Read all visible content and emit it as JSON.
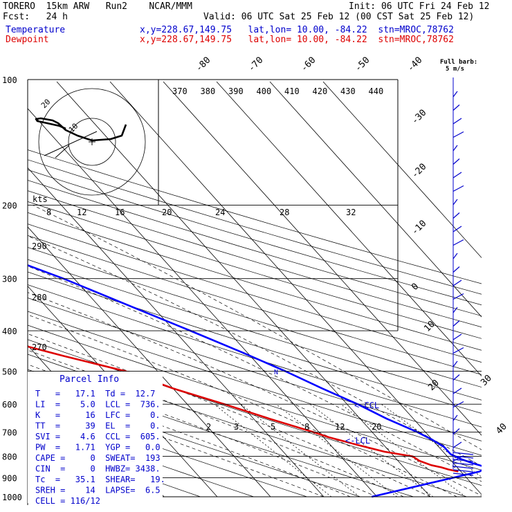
{
  "header": {
    "model": "TORERO  15km ARW   Run2    NCAR/MMM",
    "init": "Init: 06 UTC Fri 24 Feb 12",
    "fcst": "Fcst:   24 h",
    "valid": "Valid: 06 UTC Sat 25 Feb 12 (00 CST Sat 25 Feb 12)",
    "temp_name": "Temperature",
    "temp_loc": "x,y=228.67,149.75   lat,lon= 10.00, -84.22  stn=MROC,78762",
    "dew_name": "Dewpoint",
    "dew_loc": "x,y=228.67,149.75   lat,lon= 10.00, -84.22  stn=MROC,78762",
    "barb_note1": "Full barb:",
    "barb_note2": "5 m/s"
  },
  "chart_data": {
    "type": "skew-t",
    "pressure_levels": [
      "100",
      "200",
      "300",
      "400",
      "500",
      "600",
      "700",
      "800",
      "900",
      "1000"
    ],
    "iso_labels_top": [
      "-80",
      "-70",
      "-60",
      "-50",
      "-40"
    ],
    "iso_labels_right": [
      "-30",
      "-20",
      "-10",
      "0",
      "10",
      "20",
      "30",
      "40"
    ],
    "theta_labels": [
      "370",
      "380",
      "390",
      "400",
      "410",
      "420",
      "430",
      "440"
    ],
    "theta_labels_left": [
      "290",
      "280",
      "270"
    ],
    "mixing_labels": [
      "2",
      "3",
      "5",
      "8",
      "12",
      "20"
    ],
    "hodo_speeds": [
      "8",
      "12",
      "16",
      "20",
      "24",
      "28",
      "32"
    ],
    "hodo_units": "kts",
    "hodo_rings": [
      "20",
      "10"
    ],
    "lcl_labels": [
      "<-CCL",
      "<-LCL"
    ],
    "lcl_marker": "N",
    "series": [
      {
        "name": "Temperature",
        "color": "#0000ff",
        "points": [
          [
            1000,
            -1
          ],
          [
            870,
            23.5
          ],
          [
            860,
            24.5
          ],
          [
            850,
            25.5
          ],
          [
            840,
            24.5
          ],
          [
            830,
            23.5
          ],
          [
            810,
            22
          ],
          [
            790,
            21
          ],
          [
            760,
            21
          ],
          [
            730,
            20
          ],
          [
            700,
            18.5
          ],
          [
            650,
            15
          ],
          [
            600,
            12
          ],
          [
            550,
            8
          ],
          [
            500,
            4
          ],
          [
            450,
            -1
          ],
          [
            400,
            -7
          ],
          [
            350,
            -14
          ],
          [
            300,
            -22
          ],
          [
            250,
            -33
          ],
          [
            200,
            -45
          ],
          [
            170,
            -54
          ],
          [
            150,
            -63
          ],
          [
            130,
            -72
          ],
          [
            110,
            -79
          ],
          [
            100,
            -83
          ]
        ]
      },
      {
        "name": "Dewpoint",
        "color": "#dd0000",
        "points": [
          [
            870,
            19.5
          ],
          [
            860,
            18
          ],
          [
            850,
            17
          ],
          [
            840,
            15.5
          ],
          [
            820,
            14
          ],
          [
            800,
            13.5
          ],
          [
            780,
            9
          ],
          [
            750,
            5
          ],
          [
            720,
            1
          ],
          [
            700,
            -1
          ],
          [
            650,
            -7
          ],
          [
            600,
            -13
          ],
          [
            550,
            -20
          ],
          [
            500,
            -26
          ],
          [
            460,
            -35
          ],
          [
            420,
            -44
          ],
          [
            400,
            -49
          ],
          [
            370,
            -45
          ],
          [
            350,
            -40
          ],
          [
            320,
            -42
          ],
          [
            300,
            -48
          ],
          [
            280,
            -52
          ],
          [
            260,
            -52
          ],
          [
            240,
            -54
          ],
          [
            220,
            -58
          ],
          [
            200,
            -61
          ],
          [
            180,
            -67
          ],
          [
            160,
            -76
          ],
          [
            140,
            -86
          ],
          [
            120,
            -92
          ],
          [
            110,
            -94
          ],
          [
            100,
            -95
          ]
        ]
      }
    ]
  },
  "parcel": {
    "title": "Parcel  Info",
    "rows": [
      "T   =   17.1  Td =  12.7",
      "LI  =    5.0  LCL =  736.",
      "K   =     16  LFC =    0.",
      "TT  =     39  EL  =    0.",
      "SVI =    4.6  CCL =  605.",
      "PW  =   1.71  YGP =   0.0",
      "CAPE =     0  SWEAT=  193",
      "CIN  =     0  HWBZ= 3438.",
      "Tc  =   35.1  SHEAR=   19.",
      "SREH =    14  LAPSE=  6.5",
      "CELL = 116/12"
    ]
  },
  "colors": {
    "temperature": "#0000ff",
    "dewpoint": "#dd0000",
    "blue_text": "#0000cc",
    "barbs": "#0000cc",
    "grid": "#000000"
  }
}
